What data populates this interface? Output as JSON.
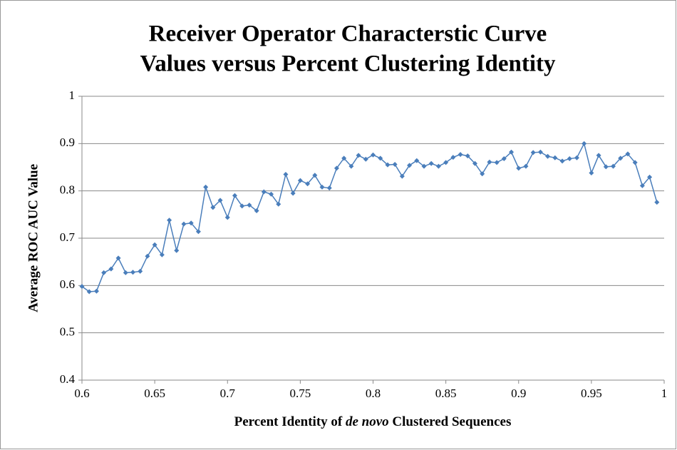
{
  "chart_data": {
    "type": "line",
    "title": [
      "Receiver Operator Characterstic Curve",
      "Values versus Percent Clustering Identity"
    ],
    "xlabel": [
      "Percent Identity of",
      "de novo",
      "Clustered Sequences"
    ],
    "xlabel_italic": [
      false,
      true,
      false
    ],
    "ylabel": "Average ROC AUC Value",
    "x": [
      0.6,
      0.605,
      0.61,
      0.615,
      0.62,
      0.625,
      0.63,
      0.635,
      0.64,
      0.645,
      0.65,
      0.655,
      0.66,
      0.665,
      0.67,
      0.675,
      0.68,
      0.685,
      0.69,
      0.695,
      0.7,
      0.705,
      0.71,
      0.715,
      0.72,
      0.725,
      0.73,
      0.735,
      0.74,
      0.745,
      0.75,
      0.755,
      0.76,
      0.765,
      0.77,
      0.775,
      0.78,
      0.785,
      0.79,
      0.795,
      0.8,
      0.805,
      0.81,
      0.815,
      0.82,
      0.825,
      0.83,
      0.835,
      0.84,
      0.845,
      0.85,
      0.855,
      0.86,
      0.865,
      0.87,
      0.875,
      0.88,
      0.885,
      0.89,
      0.895,
      0.9,
      0.905,
      0.91,
      0.915,
      0.92,
      0.925,
      0.93,
      0.935,
      0.94,
      0.945,
      0.95,
      0.955,
      0.96,
      0.965,
      0.97,
      0.975,
      0.98,
      0.985,
      0.99,
      0.995
    ],
    "series": [
      {
        "name": "Average ROC AUC",
        "color": "#4a7ebb",
        "values": [
          0.598,
          0.587,
          0.588,
          0.627,
          0.635,
          0.658,
          0.627,
          0.628,
          0.63,
          0.662,
          0.686,
          0.665,
          0.738,
          0.674,
          0.73,
          0.732,
          0.714,
          0.808,
          0.765,
          0.78,
          0.744,
          0.79,
          0.768,
          0.77,
          0.758,
          0.798,
          0.793,
          0.772,
          0.835,
          0.795,
          0.822,
          0.815,
          0.833,
          0.808,
          0.806,
          0.848,
          0.869,
          0.852,
          0.875,
          0.867,
          0.876,
          0.869,
          0.855,
          0.856,
          0.831,
          0.854,
          0.864,
          0.852,
          0.858,
          0.852,
          0.86,
          0.871,
          0.877,
          0.874,
          0.858,
          0.836,
          0.861,
          0.86,
          0.868,
          0.882,
          0.848,
          0.852,
          0.881,
          0.882,
          0.873,
          0.87,
          0.863,
          0.868,
          0.87,
          0.9,
          0.838,
          0.875,
          0.851,
          0.852,
          0.869,
          0.878,
          0.86,
          0.811,
          0.829,
          0.776
        ]
      }
    ],
    "xlim": [
      0.6,
      1
    ],
    "xticks": [
      0.6,
      0.65,
      0.7,
      0.75,
      0.8,
      0.85,
      0.9,
      0.95,
      1
    ],
    "ylim": [
      0.4,
      1
    ],
    "yticks": [
      0.4,
      0.5,
      0.6,
      0.7,
      0.8,
      0.9,
      1
    ],
    "grid": true
  }
}
